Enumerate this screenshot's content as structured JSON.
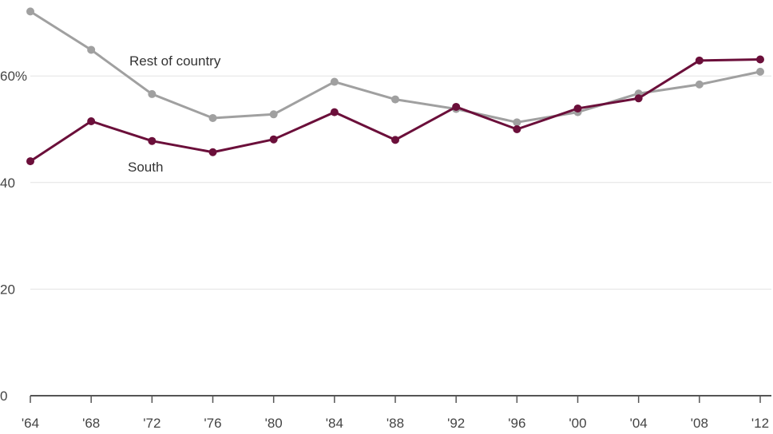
{
  "chart_data": {
    "type": "line",
    "x": [
      "'64",
      "'68",
      "'72",
      "'76",
      "'80",
      "'84",
      "'88",
      "'92",
      "'96",
      "'00",
      "'04",
      "'08",
      "'12"
    ],
    "yticks": [
      {
        "value": 0,
        "label": "0"
      },
      {
        "value": 20,
        "label": "20"
      },
      {
        "value": 40,
        "label": "40"
      },
      {
        "value": 60,
        "label": "60%"
      }
    ],
    "ylim": [
      0,
      72
    ],
    "grid": true,
    "series": [
      {
        "name": "Rest of country",
        "color": "#a0a0a0",
        "values": [
          72.1,
          64.9,
          56.6,
          52.1,
          52.8,
          58.9,
          55.6,
          53.8,
          51.3,
          53.2,
          56.7,
          58.4,
          60.8
        ]
      },
      {
        "name": "South",
        "color": "#6b0f3a",
        "values": [
          44.0,
          51.5,
          47.8,
          45.7,
          48.1,
          53.2,
          48.0,
          54.2,
          50.0,
          53.9,
          55.8,
          62.9,
          63.1
        ]
      }
    ]
  }
}
